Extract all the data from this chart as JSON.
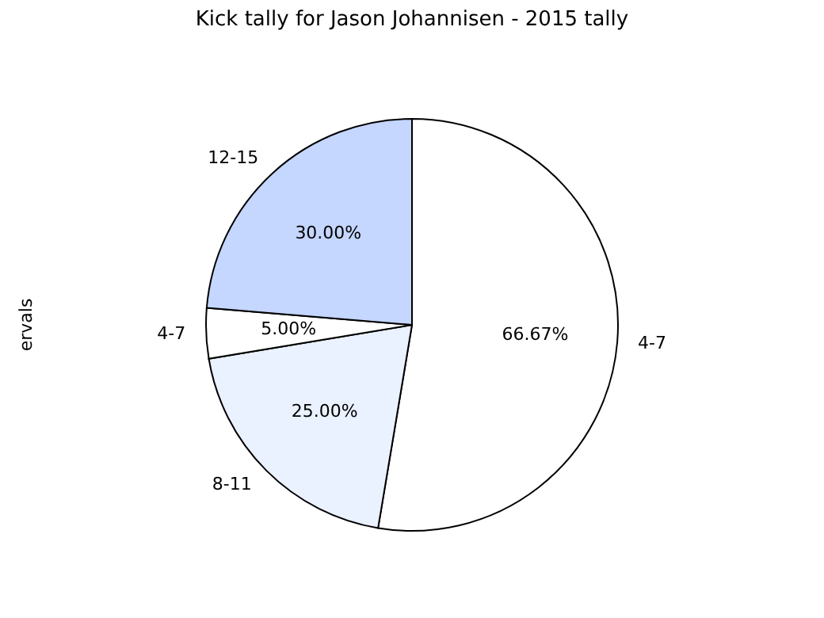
{
  "chart_data": {
    "type": "pie",
    "title": "Kick tally for Jason Johannisen - 2015 tally",
    "ylabel": "ervals",
    "categories": [
      "4-7",
      "8-11",
      "4-7",
      "12-15"
    ],
    "values": [
      66.67,
      25,
      5,
      30
    ],
    "value_labels": [
      "66.67%",
      "25.00%",
      "5.00%",
      "30.00%"
    ],
    "colors": [
      "#ffffff",
      "#eaf1ff",
      "#ffffff",
      "#c5d6ff"
    ]
  }
}
